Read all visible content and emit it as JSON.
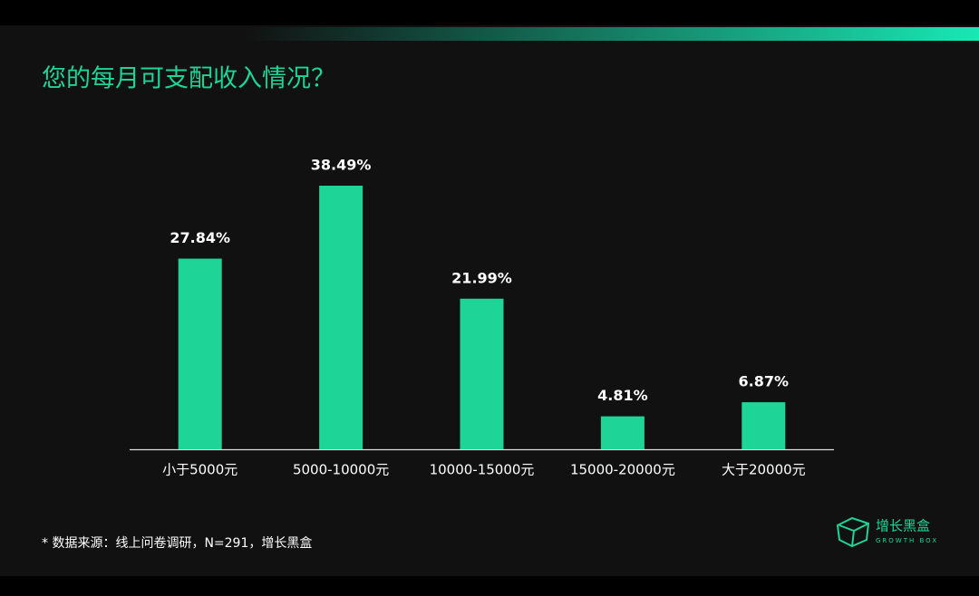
{
  "chart_data": {
    "type": "bar",
    "title": "您的每月可支配收入情况？",
    "categories": [
      "小于5000元",
      "5000-10000元",
      "10000-15000元",
      "15000-20000元",
      "大于20000元"
    ],
    "values": [
      27.84,
      38.49,
      21.99,
      4.81,
      6.87
    ],
    "value_labels": [
      "27.84%",
      "38.49%",
      "21.99%",
      "4.81%",
      "6.87%"
    ],
    "color": "#1ed496",
    "footnote": "* 数据来源：线上问卷调研，N=291，增长黑盒"
  },
  "brand": {
    "name": "增长黑盒",
    "tagline": "GROWTH BOX"
  }
}
